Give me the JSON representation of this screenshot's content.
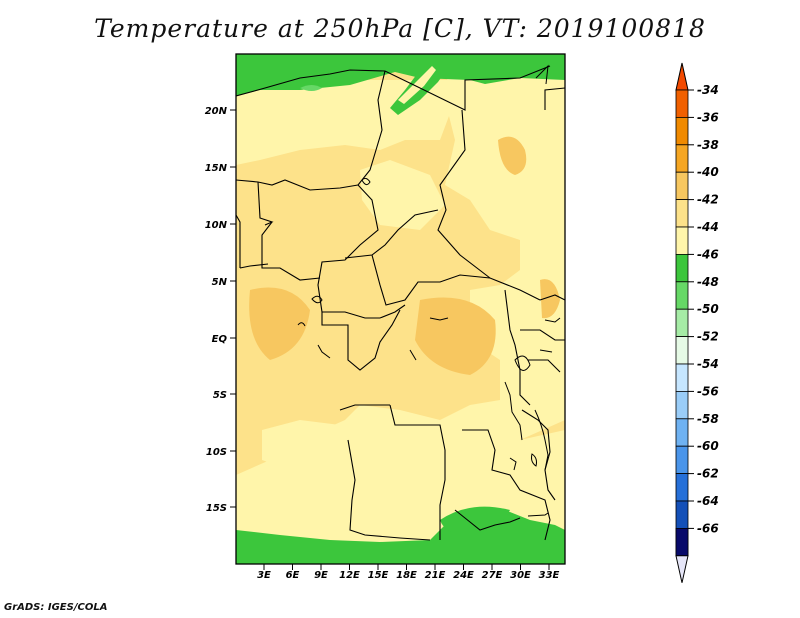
{
  "title": "Temperature at 250hPa [C], VT: 2019100818",
  "credit": "GrADS: IGES/COLA",
  "map": {
    "lon_labels": [
      "3E",
      "6E",
      "9E",
      "12E",
      "15E",
      "18E",
      "21E",
      "24E",
      "27E",
      "30E",
      "33E"
    ],
    "lat_labels": [
      "20N",
      "15N",
      "10N",
      "5N",
      "EQ",
      "5S",
      "10S",
      "15S"
    ]
  },
  "colorbar": {
    "labels": [
      "-34",
      "-36",
      "-38",
      "-40",
      "-42",
      "-44",
      "-46",
      "-48",
      "-50",
      "-52",
      "-54",
      "-56",
      "-58",
      "-60",
      "-62",
      "-64",
      "-66"
    ],
    "colors": [
      "#f06000",
      "#f08a00",
      "#f5a623",
      "#f7c760",
      "#fde28a",
      "#fff5aa",
      "#3cc63c",
      "#66d866",
      "#a6eca6",
      "#e6fae6",
      "#c6e6ff",
      "#9acdf8",
      "#6fb2f2",
      "#4a95ea",
      "#2670d8",
      "#1450b8",
      "#0a2a8a",
      "#080a6a"
    ],
    "top_color": "#f24a00",
    "bottom_color": "#e6e6f8"
  }
}
